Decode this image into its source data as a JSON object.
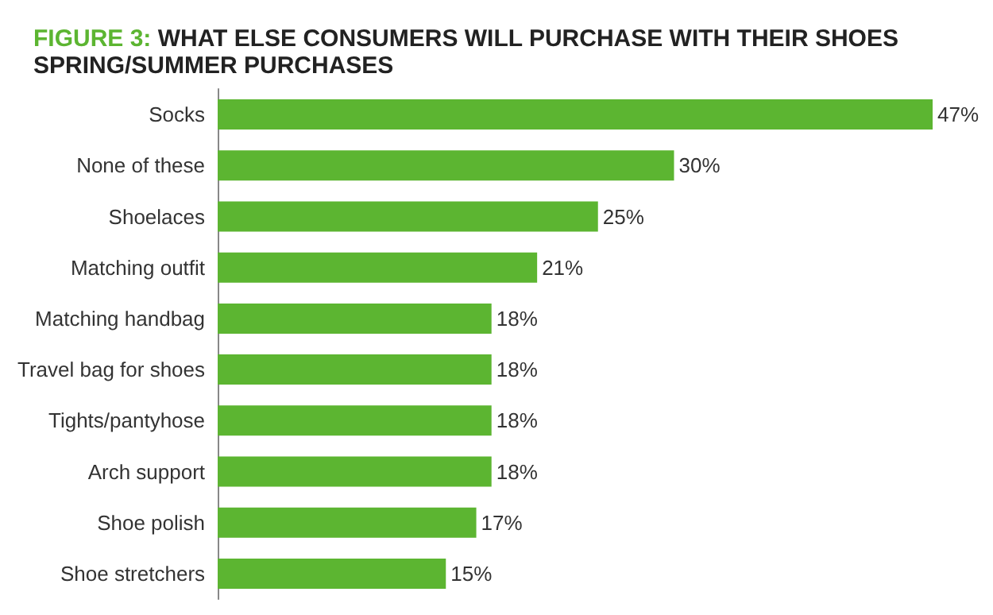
{
  "chart_data": {
    "type": "bar",
    "orientation": "horizontal",
    "title": "FIGURE 3: WHAT ELSE CONSUMERS WILL PURCHASE WITH THEIR SHOES",
    "subtitle": "SPRING/SUMMER PURCHASES",
    "categories": [
      "Socks",
      "None of these",
      "Shoelaces",
      "Matching outfit",
      "Matching handbag",
      "Travel bag for shoes",
      "Tights/pantyhose",
      "Arch support",
      "Shoe polish",
      "Shoe stretchers"
    ],
    "values": [
      47,
      30,
      25,
      21,
      18,
      18,
      18,
      18,
      17,
      15
    ],
    "value_labels": [
      "47%",
      "30%",
      "25%",
      "21%",
      "18%",
      "18%",
      "18%",
      "18%",
      "17%",
      "15%"
    ],
    "color": "#5cb531"
  }
}
